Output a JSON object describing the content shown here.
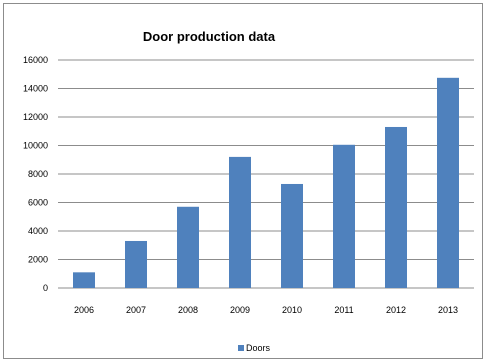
{
  "chart_data": {
    "type": "bar",
    "title": "Door production data",
    "xlabel": "",
    "ylabel": "",
    "categories": [
      "2006",
      "2007",
      "2008",
      "2009",
      "2010",
      "2011",
      "2012",
      "2013"
    ],
    "series": [
      {
        "name": "Doors",
        "values": [
          1100,
          3300,
          5700,
          9200,
          7300,
          10050,
          11300,
          14750
        ]
      }
    ],
    "ylim": [
      0,
      16000
    ],
    "yticks": [
      0,
      2000,
      4000,
      6000,
      8000,
      10000,
      12000,
      14000,
      16000
    ],
    "grid": true,
    "legend": "bottom",
    "colors": {
      "bar": "#4f81bd",
      "grid": "#8c8c8c"
    }
  }
}
